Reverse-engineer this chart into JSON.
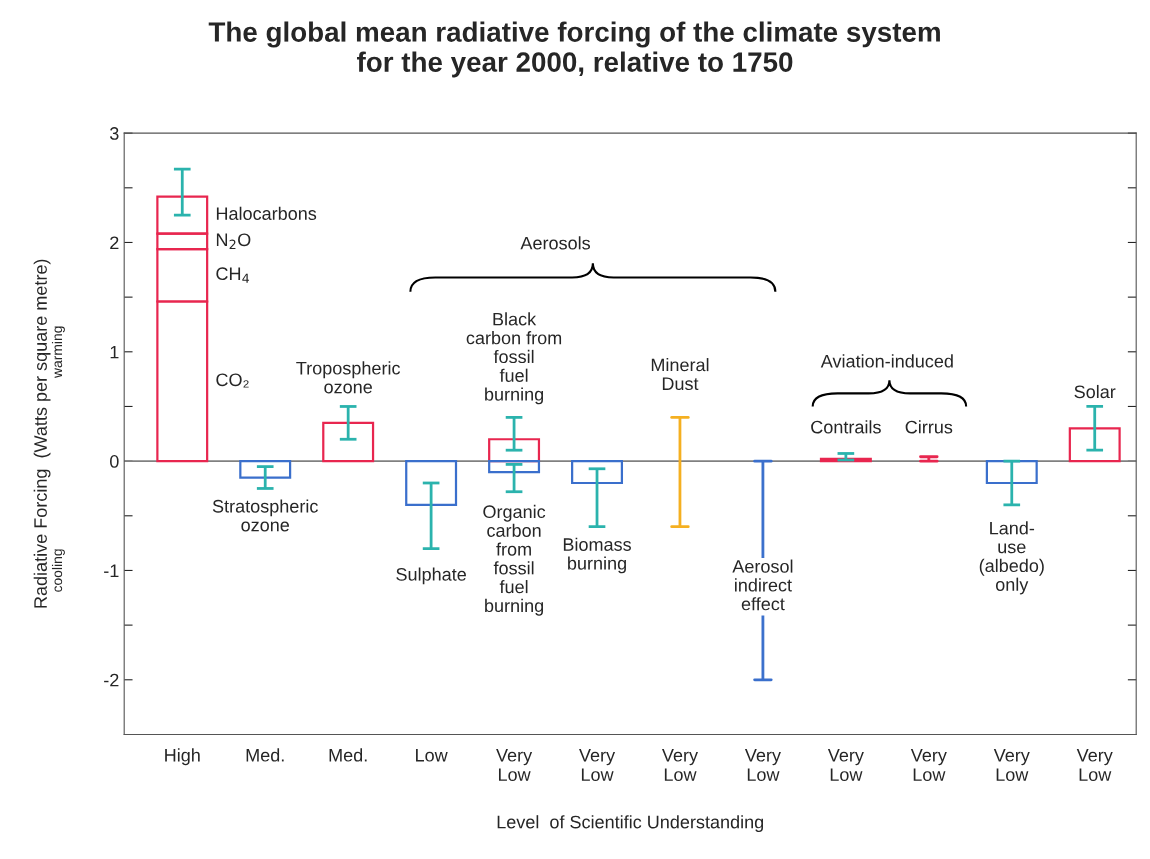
{
  "chart_data": {
    "type": "bar",
    "title": "The global mean radiative forcing of the climate system\nfor the year 2000, relative to 1750",
    "xlabel": "Level  of Scientific Understanding",
    "ylabel": "Radiative Forcing  (Watts per square metre)",
    "categories": [
      "High",
      "Med.",
      "Med.",
      "Low",
      "Very\nLow",
      "Very\nLow",
      "Very\nLow",
      "Very\nLow",
      "Very\nLow",
      "Very\nLow",
      "Very\nLow",
      "Very\nLow"
    ],
    "stacked": true,
    "ylim": [
      -2.5,
      3
    ],
    "yticks": [
      -2,
      {
        "value": -1.5,
        "label": null
      },
      -1,
      {
        "value": -0.5,
        "label": null
      },
      0,
      {
        "value": 0.5,
        "label": null
      },
      1,
      {
        "value": 1.5,
        "label": null
      },
      2,
      {
        "value": 2.5,
        "label": null
      },
      3
    ],
    "grid": false,
    "ref_lines": [
      {
        "axis": "y",
        "value": 0,
        "label": null,
        "color": "#808080"
      }
    ],
    "series": [
      {
        "name": "CO₂",
        "color": "#e8264f",
        "values": [
          1.46,
          null,
          null,
          null,
          null,
          null,
          null,
          null,
          null,
          null,
          null,
          null
        ]
      },
      {
        "name": "CH$_{4}$",
        "color": "#e8264f",
        "values": [
          0.48,
          null,
          null,
          null,
          null,
          null,
          null,
          null,
          null,
          null,
          null,
          null
        ]
      },
      {
        "name": "N$_{2}$O",
        "color": "#e8264f",
        "values": [
          0.14,
          null,
          null,
          null,
          null,
          null,
          null,
          null,
          null,
          null,
          null,
          null
        ]
      },
      {
        "name": "Halocarbons",
        "color": "#e8264f",
        "values": [
          0.34,
          null,
          null,
          null,
          null,
          null,
          null,
          null,
          null,
          null,
          null,
          null
        ],
        "errors": [
          [
            2.25,
            2.67
          ],
          null,
          null,
          null,
          null,
          null,
          null,
          null,
          null,
          null,
          null,
          null
        ]
      },
      {
        "colors": [
          "#e8264f",
          "#3a6fcc",
          "#e8264f",
          "#3a6fcc",
          "#e8264f",
          "#3a6fcc",
          "#3a6fcc",
          "#3a6fcc",
          "#e8264f",
          "#e8264f",
          "#3a6fcc",
          "#e8264f"
        ],
        "values": [
          null,
          -0.15,
          0.35,
          -0.4,
          0.2,
          -0.2,
          null,
          null,
          0.02,
          null,
          -0.2,
          0.3
        ],
        "errors": [
          null,
          [
            -0.25,
            -0.05
          ],
          [
            0.2,
            0.5
          ],
          [
            -0.8,
            -0.2
          ],
          [
            0.1,
            0.4
          ],
          [
            -0.6,
            -0.07
          ],
          null,
          null,
          [
            0.01,
            0.07
          ],
          null,
          [
            -0.4,
            0
          ],
          [
            0.1,
            0.5
          ]
        ]
      },
      {
        "color": "#3a6fcc",
        "values": [
          null,
          null,
          null,
          null,
          -0.1,
          null,
          null,
          null,
          null,
          null,
          null,
          null
        ],
        "errors": [
          null,
          null,
          null,
          null,
          [
            -0.28,
            -0.03
          ],
          null,
          null,
          null,
          null,
          null,
          null,
          null
        ]
      },
      {
        "colors": [
          "#f5b021",
          "#f5b021",
          "#f5b021",
          "#f5b021",
          "#f5b021",
          "#f5b021",
          "#f5b021",
          "#3a6fcc",
          "#e8264f",
          "#e8264f",
          "#e8264f",
          "#e8264f"
        ],
        "values": [
          null,
          null,
          null,
          null,
          null,
          null,
          1.0,
          -2,
          null,
          0.04,
          null,
          null
        ],
        "base": [
          null,
          null,
          null,
          null,
          null,
          null,
          -0.6,
          0,
          null,
          0,
          null,
          null
        ]
      }
    ],
    "annotations": [
      "Tropospheric\nozone",
      "Stratospheric\nozone",
      "Aerosols",
      "Black\ncarbon from\nfossil\nfuel\nburning",
      "Organic\ncarbon\nfrom\nfossil\nfuel\nburning",
      "Sulphate",
      "Biomass\nburning",
      "Mineral\nDust",
      "Aerosol\nindirect\neffect",
      "Aviation-induced",
      "Contrails",
      "Cirrus",
      "Land-\nuse\n(albedo)\nonly",
      "Solar",
      "warming",
      "cooling"
    ]
  }
}
